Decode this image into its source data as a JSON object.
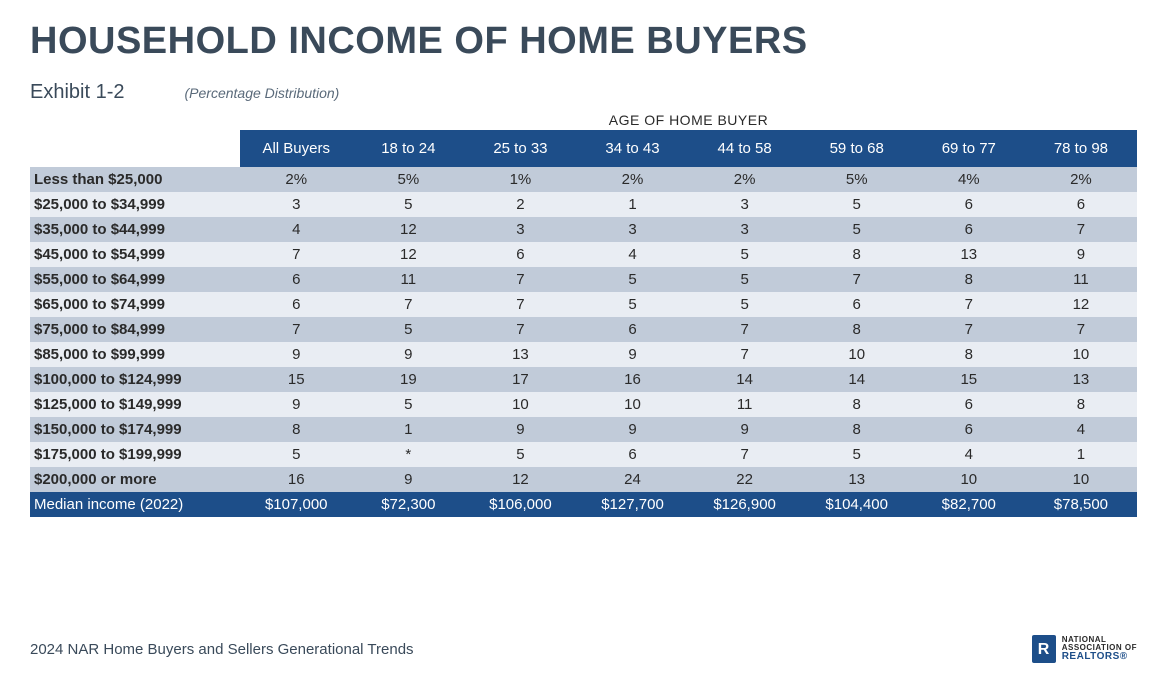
{
  "title": "HOUSEHOLD INCOME OF HOME BUYERS",
  "exhibit": "Exhibit 1-2",
  "subtitle": "(Percentage Distribution)",
  "age_caption": "AGE OF HOME BUYER",
  "table": {
    "type": "table",
    "header_bg": "#1d4e89",
    "header_fg": "#ffffff",
    "band_a_bg": "#c1cbd9",
    "band_b_bg": "#e9edf3",
    "columns": [
      "All Buyers",
      "18 to 24",
      "25 to 33",
      "34 to 43",
      "44 to 58",
      "59 to 68",
      "69 to 77",
      "78 to 98"
    ],
    "rows": [
      {
        "label": "Less than $25,000",
        "cells": [
          "2%",
          "5%",
          "1%",
          "2%",
          "2%",
          "5%",
          "4%",
          "2%"
        ]
      },
      {
        "label": "$25,000 to $34,999",
        "cells": [
          "3",
          "5",
          "2",
          "1",
          "3",
          "5",
          "6",
          "6"
        ]
      },
      {
        "label": "$35,000 to $44,999",
        "cells": [
          "4",
          "12",
          "3",
          "3",
          "3",
          "5",
          "6",
          "7"
        ]
      },
      {
        "label": "$45,000 to $54,999",
        "cells": [
          "7",
          "12",
          "6",
          "4",
          "5",
          "8",
          "13",
          "9"
        ]
      },
      {
        "label": "$55,000 to $64,999",
        "cells": [
          "6",
          "11",
          "7",
          "5",
          "5",
          "7",
          "8",
          "11"
        ]
      },
      {
        "label": "$65,000 to $74,999",
        "cells": [
          "6",
          "7",
          "7",
          "5",
          "5",
          "6",
          "7",
          "12"
        ]
      },
      {
        "label": "$75,000 to $84,999",
        "cells": [
          "7",
          "5",
          "7",
          "6",
          "7",
          "8",
          "7",
          "7"
        ]
      },
      {
        "label": "$85,000 to $99,999",
        "cells": [
          "9",
          "9",
          "13",
          "9",
          "7",
          "10",
          "8",
          "10"
        ]
      },
      {
        "label": "$100,000 to $124,999",
        "cells": [
          "15",
          "19",
          "17",
          "16",
          "14",
          "14",
          "15",
          "13"
        ]
      },
      {
        "label": "$125,000 to $149,999",
        "cells": [
          "9",
          "5",
          "10",
          "10",
          "11",
          "8",
          "6",
          "8"
        ]
      },
      {
        "label": "$150,000 to $174,999",
        "cells": [
          "8",
          "1",
          "9",
          "9",
          "9",
          "8",
          "6",
          "4"
        ]
      },
      {
        "label": "$175,000 to $199,999",
        "cells": [
          "5",
          "*",
          "5",
          "6",
          "7",
          "5",
          "4",
          "1"
        ]
      },
      {
        "label": "$200,000 or more",
        "cells": [
          "16",
          "9",
          "12",
          "24",
          "22",
          "13",
          "10",
          "10"
        ]
      }
    ],
    "median_row": {
      "label": "Median income (2022)",
      "cells": [
        "$107,000",
        "$72,300",
        "$106,000",
        "$127,700",
        "$126,900",
        "$104,400",
        "$82,700",
        "$78,500"
      ]
    }
  },
  "footnote": "2024 NAR Home Buyers and Sellers Generational Trends",
  "logo": {
    "line1": "NATIONAL",
    "line2": "ASSOCIATION OF",
    "line3": "REALTORS®"
  }
}
